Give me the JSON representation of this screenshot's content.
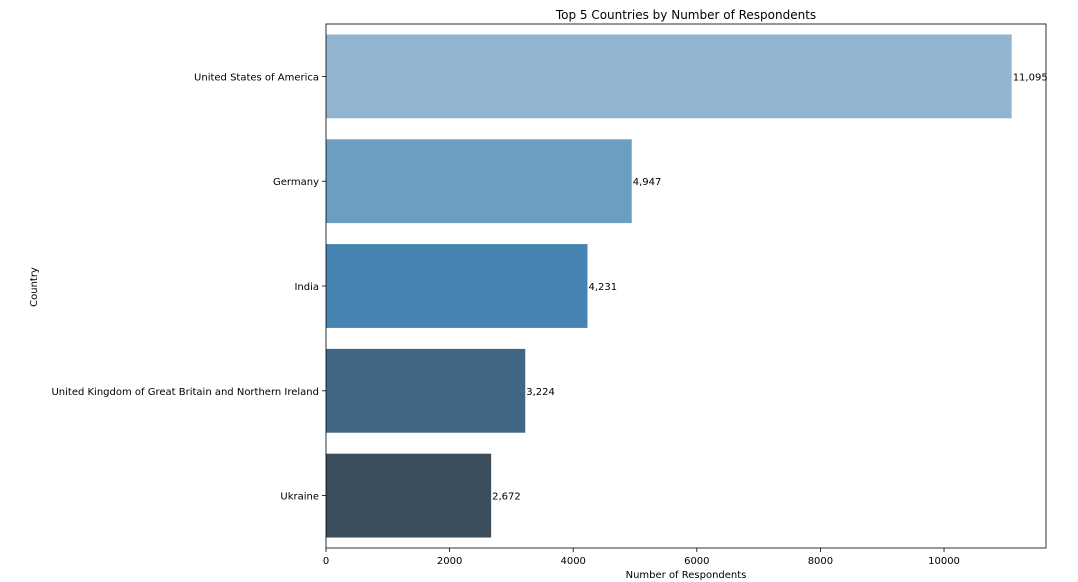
{
  "chart_data": {
    "type": "bar",
    "orientation": "horizontal",
    "title": "Top 5 Countries by Number of Respondents",
    "xlabel": "Number of Respondents",
    "ylabel": "Country",
    "xlim": [
      0,
      11650
    ],
    "xticks": [
      0,
      2000,
      4000,
      6000,
      8000,
      10000
    ],
    "categories": [
      "United States of America",
      "Germany",
      "India",
      "United Kingdom of Great Britain and Northern Ireland",
      "Ukraine"
    ],
    "values": [
      11095,
      4947,
      4231,
      3224,
      2672
    ],
    "value_labels": [
      "11,095",
      "4,947",
      "4,231",
      "3,224",
      "2,672"
    ],
    "colors": [
      "#91b5d1",
      "#6b9ec1",
      "#4884b1",
      "#416785",
      "#3c4e5c"
    ],
    "grid": false
  }
}
